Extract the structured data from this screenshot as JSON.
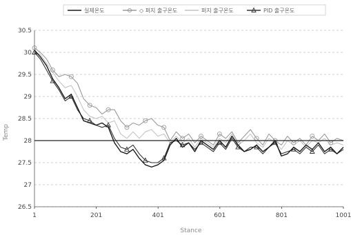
{
  "chart_data": {
    "type": "line",
    "title": "",
    "xlabel": "Stance",
    "ylabel": "Temp",
    "xlim": [
      1,
      1001
    ],
    "ylim": [
      26.5,
      30.5
    ],
    "x_ticks": [
      "1",
      "201",
      "401",
      "601",
      "801",
      "1001"
    ],
    "y_ticks": [
      "26.5",
      "27",
      "27.5",
      "28",
      "28.5",
      "29",
      "29.5",
      "30",
      "30.5"
    ],
    "grid": "horizontal-dashed",
    "legend_position": "top",
    "reference_line": 28,
    "series": [
      {
        "name": "실제온도",
        "color": "#1a1a1a",
        "marker": "none",
        "points": [
          [
            1,
            30.05
          ],
          [
            20,
            29.9
          ],
          [
            40,
            29.7
          ],
          [
            60,
            29.4
          ],
          [
            80,
            29.2
          ],
          [
            100,
            28.95
          ],
          [
            120,
            29.05
          ],
          [
            140,
            28.75
          ],
          [
            160,
            28.45
          ],
          [
            180,
            28.4
          ],
          [
            200,
            28.35
          ],
          [
            220,
            28.4
          ],
          [
            240,
            28.3
          ],
          [
            260,
            27.95
          ],
          [
            280,
            27.75
          ],
          [
            300,
            27.7
          ],
          [
            320,
            27.8
          ],
          [
            340,
            27.6
          ],
          [
            360,
            27.45
          ],
          [
            380,
            27.4
          ],
          [
            400,
            27.45
          ],
          [
            420,
            27.55
          ],
          [
            440,
            27.9
          ],
          [
            460,
            28.05
          ],
          [
            480,
            27.85
          ],
          [
            500,
            27.95
          ],
          [
            520,
            27.75
          ],
          [
            540,
            28.0
          ],
          [
            560,
            27.9
          ],
          [
            580,
            27.8
          ],
          [
            600,
            28.0
          ],
          [
            620,
            27.85
          ],
          [
            640,
            28.1
          ],
          [
            660,
            27.9
          ],
          [
            680,
            27.75
          ],
          [
            700,
            27.8
          ],
          [
            720,
            27.9
          ],
          [
            740,
            27.75
          ],
          [
            760,
            27.85
          ],
          [
            780,
            28.0
          ],
          [
            800,
            27.65
          ],
          [
            820,
            27.7
          ],
          [
            840,
            27.85
          ],
          [
            860,
            27.75
          ],
          [
            880,
            27.9
          ],
          [
            900,
            27.8
          ],
          [
            920,
            27.95
          ],
          [
            940,
            27.75
          ],
          [
            960,
            27.85
          ],
          [
            980,
            27.7
          ],
          [
            1001,
            27.85
          ]
        ]
      },
      {
        "name": "◇ 퍼지 출구온도",
        "color": "#9a9a9a",
        "marker": "circle",
        "points": [
          [
            1,
            30.1
          ],
          [
            20,
            30.0
          ],
          [
            40,
            29.85
          ],
          [
            60,
            29.6
          ],
          [
            80,
            29.45
          ],
          [
            100,
            29.5
          ],
          [
            120,
            29.45
          ],
          [
            140,
            29.3
          ],
          [
            160,
            28.95
          ],
          [
            180,
            28.8
          ],
          [
            200,
            28.75
          ],
          [
            220,
            28.6
          ],
          [
            240,
            28.7
          ],
          [
            260,
            28.7
          ],
          [
            280,
            28.45
          ],
          [
            300,
            28.3
          ],
          [
            320,
            28.4
          ],
          [
            340,
            28.35
          ],
          [
            360,
            28.45
          ],
          [
            380,
            28.5
          ],
          [
            400,
            28.35
          ],
          [
            420,
            28.3
          ],
          [
            440,
            28.0
          ],
          [
            460,
            28.2
          ],
          [
            480,
            28.05
          ],
          [
            500,
            28.15
          ],
          [
            520,
            27.95
          ],
          [
            540,
            28.1
          ],
          [
            560,
            28.0
          ],
          [
            580,
            27.9
          ],
          [
            600,
            28.15
          ],
          [
            620,
            28.05
          ],
          [
            640,
            28.2
          ],
          [
            660,
            27.95
          ],
          [
            680,
            28.1
          ],
          [
            700,
            28.25
          ],
          [
            720,
            28.05
          ],
          [
            740,
            27.9
          ],
          [
            760,
            28.15
          ],
          [
            780,
            28.0
          ],
          [
            800,
            27.9
          ],
          [
            820,
            28.1
          ],
          [
            840,
            27.95
          ],
          [
            860,
            28.05
          ],
          [
            880,
            27.9
          ],
          [
            900,
            28.1
          ],
          [
            920,
            28.0
          ],
          [
            940,
            28.15
          ],
          [
            960,
            27.95
          ],
          [
            980,
            28.05
          ],
          [
            1001,
            28.0
          ]
        ]
      },
      {
        "name": "퍼지 출구온도",
        "color": "#c4c4c4",
        "marker": "none",
        "points": [
          [
            1,
            30.0
          ],
          [
            20,
            29.95
          ],
          [
            40,
            29.75
          ],
          [
            60,
            29.55
          ],
          [
            80,
            29.35
          ],
          [
            100,
            29.2
          ],
          [
            120,
            29.25
          ],
          [
            140,
            29.0
          ],
          [
            160,
            28.7
          ],
          [
            180,
            28.55
          ],
          [
            200,
            28.5
          ],
          [
            220,
            28.55
          ],
          [
            240,
            28.4
          ],
          [
            260,
            28.45
          ],
          [
            280,
            28.15
          ],
          [
            300,
            28.05
          ],
          [
            320,
            28.2
          ],
          [
            340,
            28.05
          ],
          [
            360,
            28.2
          ],
          [
            380,
            28.25
          ],
          [
            400,
            28.1
          ],
          [
            420,
            28.15
          ],
          [
            440,
            27.95
          ],
          [
            460,
            28.1
          ],
          [
            480,
            27.95
          ],
          [
            500,
            28.05
          ],
          [
            520,
            27.85
          ],
          [
            540,
            28.05
          ],
          [
            560,
            27.95
          ],
          [
            580,
            27.85
          ],
          [
            600,
            28.05
          ],
          [
            620,
            27.95
          ],
          [
            640,
            28.15
          ],
          [
            660,
            27.9
          ],
          [
            680,
            28.0
          ],
          [
            700,
            28.15
          ],
          [
            720,
            27.95
          ],
          [
            740,
            27.85
          ],
          [
            760,
            28.05
          ],
          [
            780,
            27.95
          ],
          [
            800,
            27.8
          ],
          [
            820,
            28.0
          ],
          [
            840,
            27.9
          ],
          [
            860,
            28.0
          ],
          [
            880,
            27.85
          ],
          [
            900,
            28.0
          ],
          [
            920,
            27.95
          ],
          [
            940,
            28.05
          ],
          [
            960,
            27.9
          ],
          [
            980,
            27.95
          ],
          [
            1001,
            27.9
          ]
        ]
      },
      {
        "name": "PID 출구온도",
        "color": "#333333",
        "marker": "triangle",
        "points": [
          [
            1,
            30.0
          ],
          [
            20,
            29.85
          ],
          [
            40,
            29.6
          ],
          [
            60,
            29.35
          ],
          [
            80,
            29.15
          ],
          [
            100,
            28.9
          ],
          [
            120,
            29.0
          ],
          [
            140,
            28.7
          ],
          [
            160,
            28.5
          ],
          [
            180,
            28.45
          ],
          [
            200,
            28.35
          ],
          [
            220,
            28.3
          ],
          [
            240,
            28.35
          ],
          [
            260,
            28.05
          ],
          [
            280,
            27.85
          ],
          [
            300,
            27.8
          ],
          [
            320,
            27.9
          ],
          [
            340,
            27.7
          ],
          [
            360,
            27.55
          ],
          [
            380,
            27.5
          ],
          [
            400,
            27.5
          ],
          [
            420,
            27.6
          ],
          [
            440,
            27.95
          ],
          [
            460,
            28.0
          ],
          [
            480,
            27.9
          ],
          [
            500,
            27.95
          ],
          [
            520,
            27.8
          ],
          [
            540,
            27.95
          ],
          [
            560,
            27.85
          ],
          [
            580,
            27.75
          ],
          [
            600,
            27.95
          ],
          [
            620,
            27.8
          ],
          [
            640,
            28.05
          ],
          [
            660,
            27.85
          ],
          [
            680,
            27.75
          ],
          [
            700,
            27.85
          ],
          [
            720,
            27.85
          ],
          [
            740,
            27.7
          ],
          [
            760,
            27.85
          ],
          [
            780,
            27.95
          ],
          [
            800,
            27.7
          ],
          [
            820,
            27.75
          ],
          [
            840,
            27.8
          ],
          [
            860,
            27.7
          ],
          [
            880,
            27.85
          ],
          [
            900,
            27.75
          ],
          [
            920,
            27.9
          ],
          [
            940,
            27.7
          ],
          [
            960,
            27.8
          ],
          [
            980,
            27.7
          ],
          [
            1001,
            27.8
          ]
        ]
      }
    ]
  }
}
